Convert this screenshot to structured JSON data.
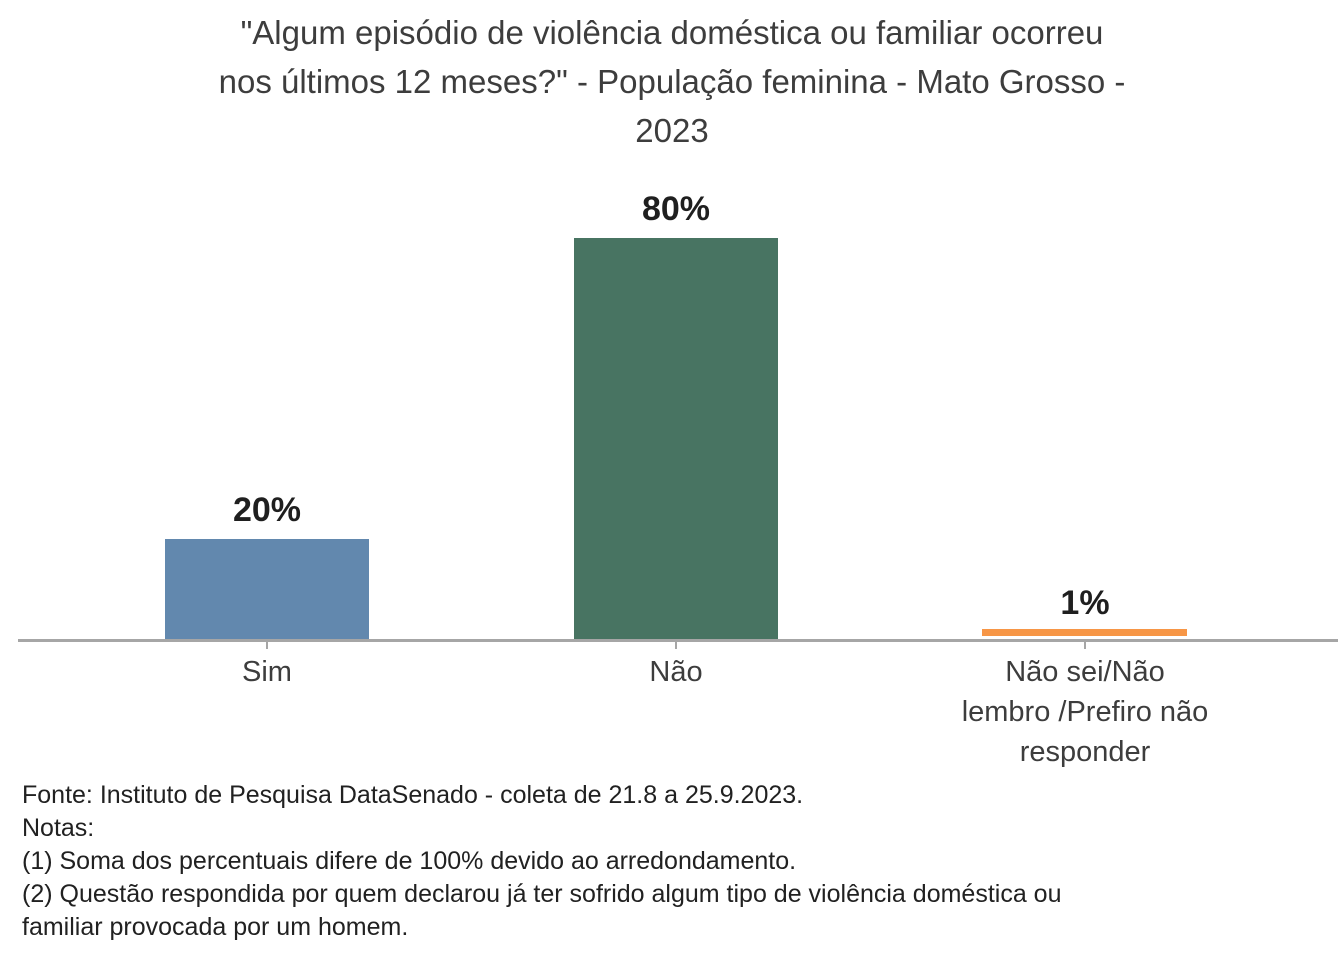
{
  "chart_data": {
    "type": "bar",
    "title": "\"Algum episódio de violência doméstica ou familiar ocorreu nos últimos 12 meses?\" - População feminina - Mato Grosso - 2023",
    "title_lines": [
      "\"Algum episódio de violência doméstica ou familiar ocorreu",
      "nos últimos 12 meses?\" - População feminina - Mato Grosso -",
      "2023"
    ],
    "categories": [
      "Sim",
      "Não",
      "Não sei/Não lembro /Prefiro não responder"
    ],
    "category3_lines": [
      "Não sei/Não",
      "lembro /Prefiro não",
      "responder"
    ],
    "values": [
      20,
      80,
      1
    ],
    "value_labels": [
      "20%",
      "80%",
      "1%"
    ],
    "unit": "%",
    "ylim": [
      0,
      100
    ],
    "bar_colors": [
      "#6288ae",
      "#487462",
      "#f79646"
    ],
    "axis_color": "#a6a6a6",
    "grid": false,
    "legend": false
  },
  "footer": {
    "source": "Fonte: Instituto de Pesquisa DataSenado - coleta de 21.8 a 25.9.2023.",
    "notes_label": "Notas:",
    "notes": [
      "(1) Soma dos percentuais difere de 100% devido ao arredondamento.",
      "(2) Questão respondida por quem declarou já ter sofrido algum tipo de violência doméstica ou familiar provocada por um homem."
    ]
  }
}
